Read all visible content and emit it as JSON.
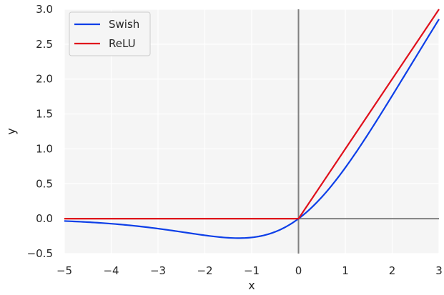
{
  "chart_data": {
    "type": "line",
    "title": "",
    "xlabel": "x",
    "ylabel": "y",
    "xlim": [
      -5,
      3
    ],
    "ylim": [
      -0.5,
      3.0
    ],
    "xticks": [
      -5,
      -4,
      -3,
      -2,
      -1,
      0,
      1,
      2,
      3
    ],
    "yticks": [
      -0.5,
      0.0,
      0.5,
      1.0,
      1.5,
      2.0,
      2.5,
      3.0
    ],
    "xtick_labels": [
      "−5",
      "−4",
      "−3",
      "−2",
      "−1",
      "0",
      "1",
      "2",
      "3"
    ],
    "ytick_labels": [
      "−0.5",
      "0.0",
      "0.5",
      "1.0",
      "1.5",
      "2.0",
      "2.5",
      "3.0"
    ],
    "grid": true,
    "background": "#f5f5f5",
    "legend_position": "top-left",
    "series": [
      {
        "name": "Swish",
        "color": "#0d3fe8",
        "x": [
          -5,
          -4.5,
          -4,
          -3.5,
          -3,
          -2.5,
          -2,
          -1.5,
          -1.28,
          -1,
          -0.5,
          0,
          0.5,
          1,
          1.5,
          2,
          2.5,
          3
        ],
        "y": [
          -0.033,
          -0.05,
          -0.072,
          -0.102,
          -0.142,
          -0.189,
          -0.238,
          -0.273,
          -0.278,
          -0.269,
          -0.189,
          0.0,
          0.311,
          0.731,
          1.227,
          1.762,
          2.317,
          2.858
        ]
      },
      {
        "name": "ReLU",
        "color": "#e0101c",
        "x": [
          -5,
          0,
          3
        ],
        "y": [
          0,
          0,
          3
        ]
      }
    ],
    "reference_lines": {
      "color": "#808080",
      "vertical_x": 0,
      "horizontal_y": 0
    }
  }
}
